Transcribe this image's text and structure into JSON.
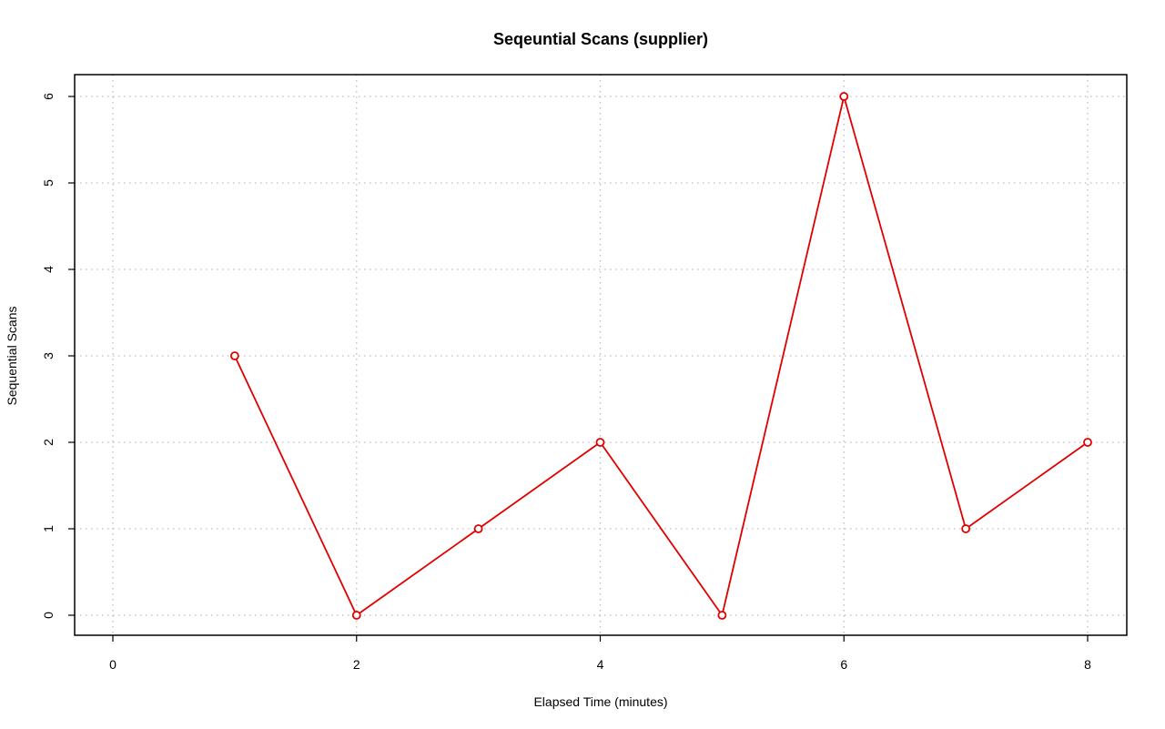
{
  "chart_data": {
    "type": "line",
    "title": "Seqeuntial Scans (supplier)",
    "xlabel": "Elapsed Time (minutes)",
    "ylabel": "Sequential Scans",
    "xlim": [
      0,
      8
    ],
    "ylim": [
      0,
      6
    ],
    "x_ticks": [
      0,
      2,
      4,
      6,
      8
    ],
    "y_ticks": [
      0,
      1,
      2,
      3,
      4,
      5,
      6
    ],
    "grid": true,
    "series": [
      {
        "color": "#e00000",
        "x": [
          1,
          2,
          3,
          4,
          5,
          6,
          7,
          8
        ],
        "values": [
          3,
          0,
          1,
          2,
          0,
          6,
          1,
          2
        ]
      }
    ]
  }
}
